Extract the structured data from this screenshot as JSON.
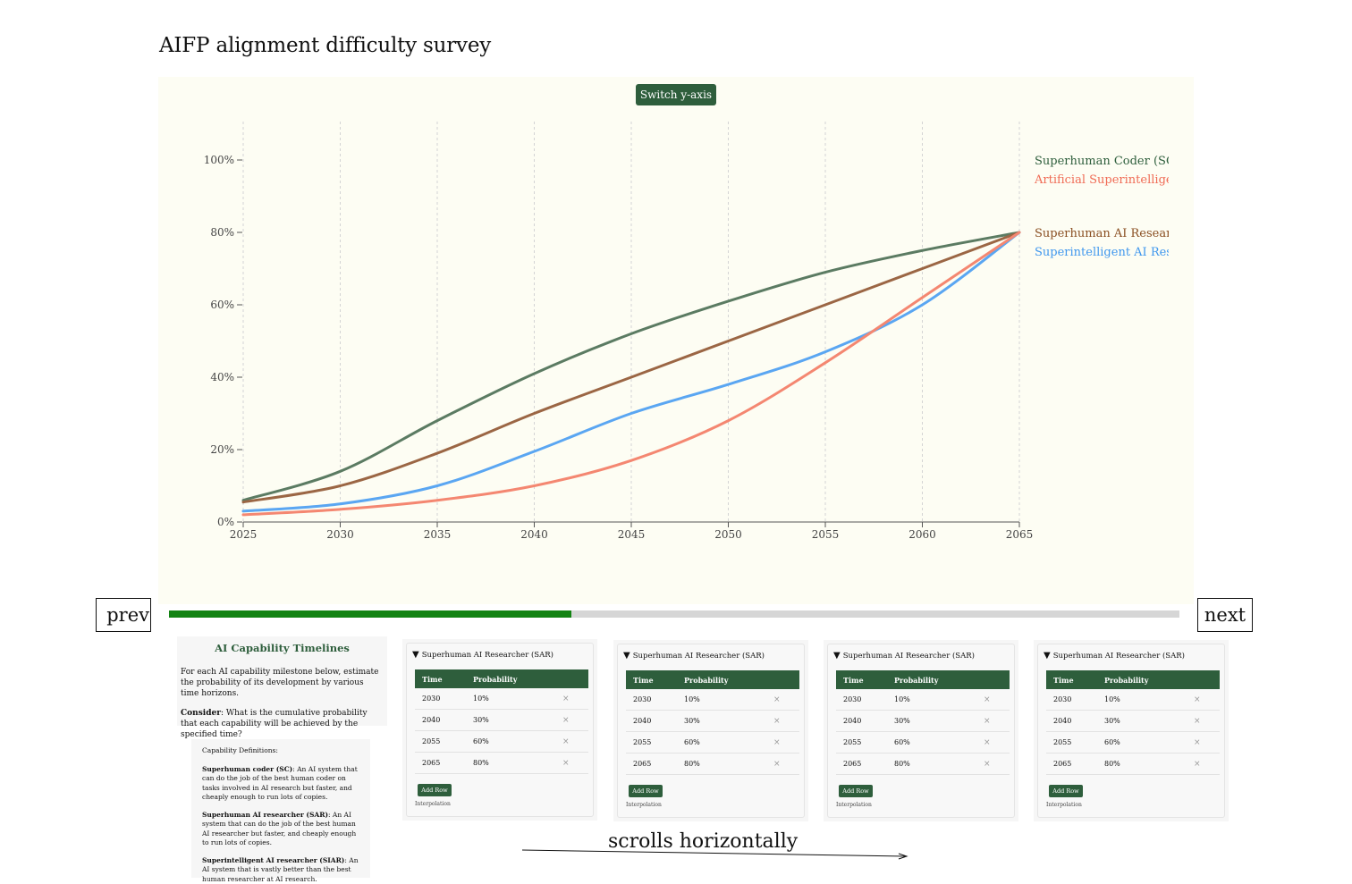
{
  "page": {
    "title": "AIFP alignment difficulty survey"
  },
  "chart": {
    "switch_label": "Switch y-axis"
  },
  "nav": {
    "prev_label": "prev",
    "next_label": "next",
    "progress": 0.398
  },
  "intro": {
    "heading": "AI Capability Timelines",
    "text": "For each AI capability milestone below, estimate the probability of its development by various time horizons.",
    "consider_label": "Consider",
    "consider_text": ": What is the cumulative probability that each capability will be achieved by the specified time?"
  },
  "definitions": {
    "title": "Capability Definitions:",
    "items": [
      {
        "term": "Superhuman coder (SC)",
        "text": ": An AI system that can do the job of the best human coder on tasks involved in AI research but faster, and cheaply enough to run lots of copies."
      },
      {
        "term": "Superhuman AI researcher (SAR)",
        "text": ": An AI system that can do the job of the best human AI researcher but faster, and cheaply enough to run lots of copies."
      },
      {
        "term": "Superintelligent AI researcher (SIAR)",
        "text": ": An AI system that is vastly better than the best human researcher at AI research."
      }
    ]
  },
  "cards": [
    {
      "title": "Superhuman AI Researcher (SAR)",
      "col_time": "Time",
      "col_prob": "Probability",
      "rows": [
        {
          "time": "2030",
          "prob": "10%"
        },
        {
          "time": "2040",
          "prob": "30%"
        },
        {
          "time": "2055",
          "prob": "60%"
        },
        {
          "time": "2065",
          "prob": "80%"
        }
      ],
      "add_label": "Add Row",
      "interp_label": "Interpolation"
    },
    {
      "title": "Superhuman AI Researcher (SAR)",
      "col_time": "Time",
      "col_prob": "Probability",
      "rows": [
        {
          "time": "2030",
          "prob": "10%"
        },
        {
          "time": "2040",
          "prob": "30%"
        },
        {
          "time": "2055",
          "prob": "60%"
        },
        {
          "time": "2065",
          "prob": "80%"
        }
      ],
      "add_label": "Add Row",
      "interp_label": "Interpolation"
    },
    {
      "title": "Superhuman AI Researcher (SAR)",
      "col_time": "Time",
      "col_prob": "Probability",
      "rows": [
        {
          "time": "2030",
          "prob": "10%"
        },
        {
          "time": "2040",
          "prob": "30%"
        },
        {
          "time": "2055",
          "prob": "60%"
        },
        {
          "time": "2065",
          "prob": "80%"
        }
      ],
      "add_label": "Add Row",
      "interp_label": "Interpolation"
    },
    {
      "title": "Superhuman AI Researcher (SAR)",
      "col_time": "Time",
      "col_prob": "Probability",
      "rows": [
        {
          "time": "2030",
          "prob": "10%"
        },
        {
          "time": "2040",
          "prob": "30%"
        },
        {
          "time": "2055",
          "prob": "60%"
        },
        {
          "time": "2065",
          "prob": "80%"
        }
      ],
      "add_label": "Add Row",
      "interp_label": "Interpolation"
    }
  ],
  "delete_glyph": "×",
  "annotation": {
    "text": "scrolls horizontally"
  },
  "chart_data": {
    "type": "line",
    "title": "",
    "xlabel": "",
    "ylabel": "",
    "xlim": [
      2025,
      2065
    ],
    "ylim": [
      0,
      100
    ],
    "x_ticks": [
      2025,
      2030,
      2035,
      2040,
      2045,
      2050,
      2055,
      2060,
      2065
    ],
    "y_ticks": [
      0,
      20,
      40,
      60,
      80,
      100
    ],
    "y_tick_labels": [
      "0%",
      "20%",
      "40%",
      "60%",
      "80%",
      "100%"
    ],
    "grid": "vertical dashed",
    "legend": "right (end-of-line labels)",
    "series": [
      {
        "name": "Superhuman Coder (SC)",
        "color": "#5b7b62",
        "x": [
          2025,
          2030,
          2035,
          2040,
          2045,
          2050,
          2055,
          2060,
          2065
        ],
        "y": [
          6,
          14,
          28,
          41,
          52,
          61,
          69,
          75,
          80
        ]
      },
      {
        "name": "Artificial Superintelligence (",
        "color": "#f48771",
        "x": [
          2025,
          2030,
          2035,
          2040,
          2045,
          2050,
          2055,
          2060,
          2065
        ],
        "y": [
          2,
          3.5,
          6,
          10,
          17,
          28,
          44,
          62,
          80
        ]
      },
      {
        "name": "Superhuman AI Researcher",
        "color": "#9b6644",
        "x": [
          2025,
          2030,
          2035,
          2040,
          2045,
          2050,
          2055,
          2060,
          2065
        ],
        "y": [
          5.5,
          10,
          19,
          30,
          40,
          50,
          60,
          70,
          80
        ]
      },
      {
        "name": "Superintelligent AI Researcl",
        "color": "#5aa6f2",
        "x": [
          2025,
          2030,
          2035,
          2040,
          2045,
          2050,
          2055,
          2060,
          2065
        ],
        "y": [
          3,
          5,
          10,
          19.5,
          30,
          38,
          47,
          60,
          80
        ]
      }
    ],
    "label_colors": [
      "#2e5e3c",
      "#f06b55",
      "#8a4f22",
      "#3f97ee"
    ]
  }
}
